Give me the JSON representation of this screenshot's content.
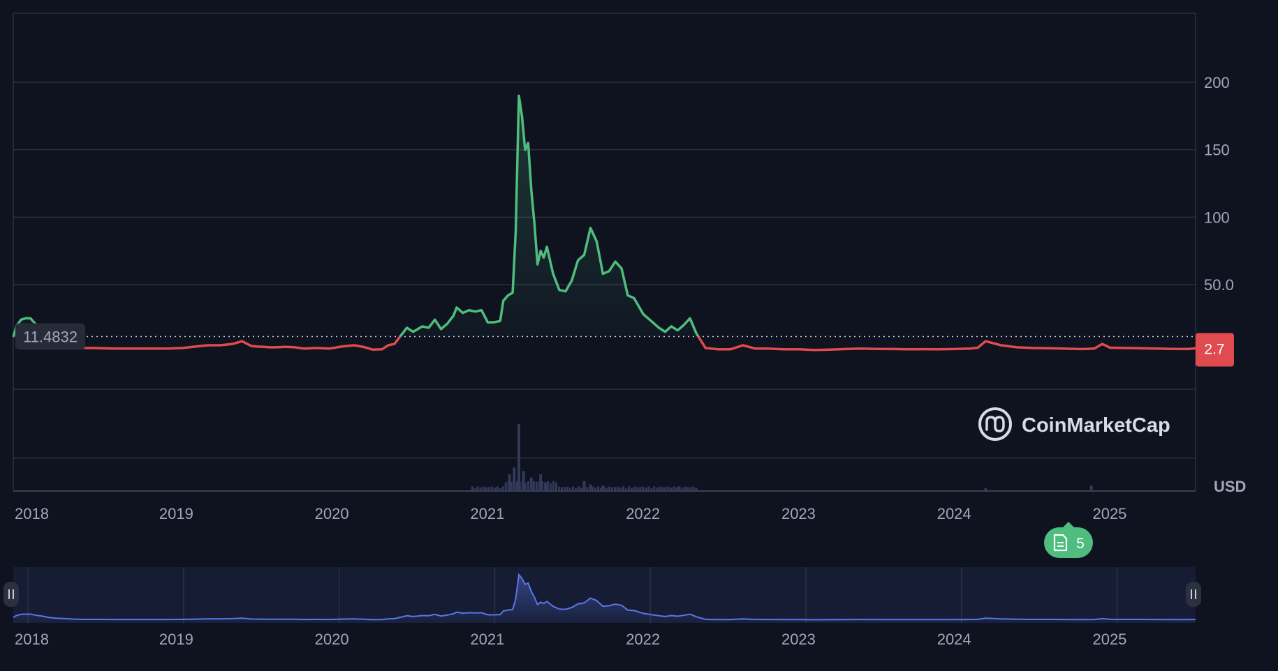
{
  "chart_data": {
    "type": "line",
    "currency_label": "USD",
    "watermark": "CoinMarketCap",
    "baseline_value_label": "11.4832",
    "baseline_value": 11.4832,
    "current_price_label": "2.7",
    "current_price": 2.7,
    "news_badge_count": "5",
    "y_ticks": [
      "200",
      "150",
      "100",
      "50.0"
    ],
    "y_tick_values": [
      200,
      150,
      100,
      50
    ],
    "x_ticks": [
      "2018",
      "2019",
      "2020",
      "2021",
      "2022",
      "2023",
      "2024",
      "2025"
    ],
    "x_tick_values": [
      2018.0,
      2019.0,
      2020.0,
      2021.0,
      2022.0,
      2023.0,
      2024.0,
      2025.0
    ],
    "ylim": [
      -40,
      250
    ],
    "xlim": [
      2017.95,
      2025.55
    ],
    "colors": {
      "above": "#4fbd7e",
      "below": "#e04b4f",
      "volume": "#33395a",
      "navigator": "#5a76e8"
    },
    "series": [
      {
        "x": [
          2017.95,
          2017.97,
          2018.0,
          2018.03,
          2018.06,
          2018.1,
          2018.14,
          2018.18,
          2018.22,
          2018.28,
          2018.34,
          2018.4,
          2018.46,
          2018.52,
          2018.58,
          2018.64,
          2018.72,
          2018.8,
          2018.88,
          2018.96,
          2019.04,
          2019.12,
          2019.2,
          2019.28,
          2019.36,
          2019.42,
          2019.48,
          2019.52,
          2019.56,
          2019.6,
          2019.64,
          2019.7,
          2019.76,
          2019.82,
          2019.9,
          2019.98,
          2020.06,
          2020.14,
          2020.2,
          2020.26,
          2020.32,
          2020.36,
          2020.4,
          2020.44,
          2020.48,
          2020.52,
          2020.55,
          2020.58,
          2020.62,
          2020.66,
          2020.7,
          2020.74,
          2020.78,
          2020.8,
          2020.84,
          2020.88,
          2020.92,
          2020.96,
          2021.0,
          2021.04,
          2021.08,
          2021.1,
          2021.13,
          2021.16,
          2021.18,
          2021.2,
          2021.22,
          2021.24,
          2021.26,
          2021.28,
          2021.3,
          2021.32,
          2021.34,
          2021.36,
          2021.38,
          2021.42,
          2021.46,
          2021.5,
          2021.54,
          2021.58,
          2021.62,
          2021.66,
          2021.7,
          2021.74,
          2021.78,
          2021.82,
          2021.86,
          2021.9,
          2021.94,
          2022.0,
          2022.06,
          2022.1,
          2022.14,
          2022.18,
          2022.22,
          2022.26,
          2022.3,
          2022.34,
          2022.4,
          2022.48,
          2022.56,
          2022.64,
          2022.72,
          2022.8,
          2022.9,
          2023.0,
          2023.1,
          2023.2,
          2023.3,
          2023.4,
          2023.5,
          2023.6,
          2023.7,
          2023.8,
          2023.9,
          2024.0,
          2024.1,
          2024.15,
          2024.2,
          2024.3,
          2024.4,
          2024.5,
          2024.6,
          2024.7,
          2024.8,
          2024.85,
          2024.9,
          2024.95,
          2025.0,
          2025.1,
          2025.2,
          2025.3,
          2025.4,
          2025.5,
          2025.55
        ],
        "y": [
          11,
          19,
          24,
          25,
          25,
          20,
          16,
          11,
          8,
          6,
          4,
          3,
          3,
          2.8,
          2.6,
          2.5,
          2.5,
          2.6,
          2.5,
          2.6,
          3,
          4,
          5,
          5,
          6,
          8,
          4.5,
          4,
          3.8,
          3.5,
          3.5,
          3.8,
          3.5,
          2.5,
          3,
          2.5,
          4,
          5,
          3.8,
          1.8,
          2,
          5,
          6,
          12,
          18,
          15,
          17,
          19,
          18,
          24,
          17,
          21,
          27,
          33,
          29,
          31,
          30,
          31,
          22,
          22,
          23,
          38,
          42,
          44,
          90,
          190,
          175,
          150,
          155,
          120,
          95,
          65,
          75,
          70,
          78,
          58,
          46,
          45,
          53,
          68,
          72,
          92,
          82,
          58,
          60,
          67,
          62,
          42,
          40,
          28,
          22,
          18,
          15,
          19,
          16,
          20,
          25,
          14,
          3,
          2,
          2,
          5,
          2.5,
          2.5,
          2,
          2,
          1.5,
          1.8,
          2.2,
          2.5,
          2.3,
          2.2,
          2,
          2.1,
          2,
          2.2,
          2.5,
          3.2,
          8,
          5,
          3.5,
          3,
          2.8,
          2.5,
          2.2,
          2.3,
          2.6,
          6,
          3.2,
          3,
          2.8,
          2.5,
          2.3,
          2.2,
          2.7
        ]
      }
    ],
    "volume_spikes": [
      {
        "x": 2021.2,
        "v": 1.0
      },
      {
        "x": 2021.17,
        "v": 0.35
      },
      {
        "x": 2021.14,
        "v": 0.25
      },
      {
        "x": 2021.23,
        "v": 0.3
      },
      {
        "x": 2021.28,
        "v": 0.2
      },
      {
        "x": 2021.34,
        "v": 0.25
      },
      {
        "x": 2021.38,
        "v": 0.12
      },
      {
        "x": 2021.62,
        "v": 0.15
      },
      {
        "x": 2021.66,
        "v": 0.1
      },
      {
        "x": 2021.74,
        "v": 0.08
      },
      {
        "x": 2022.22,
        "v": 0.06
      },
      {
        "x": 2024.2,
        "v": 0.04
      },
      {
        "x": 2024.88,
        "v": 0.08
      }
    ]
  }
}
